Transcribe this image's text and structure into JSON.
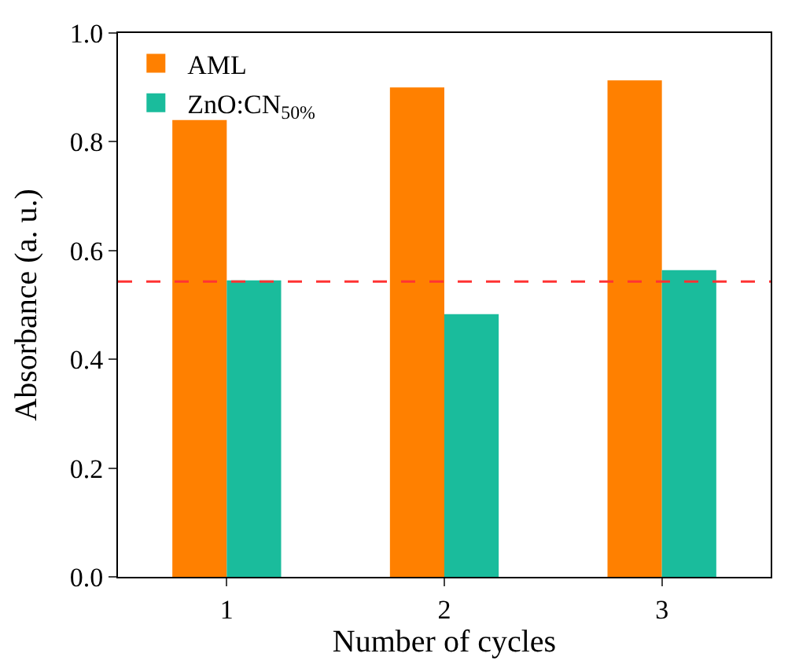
{
  "chart_data": {
    "type": "bar",
    "xlabel": "Number of cycles",
    "ylabel": "Absorbance (a. u.)",
    "categories": [
      "1",
      "2",
      "3"
    ],
    "series": [
      {
        "name": "AML",
        "color": "#ff8000",
        "values": [
          0.84,
          0.9,
          0.913
        ]
      },
      {
        "name": "ZnO:CN$_{50%}$",
        "color": "#1abc9c",
        "values": [
          0.545,
          0.483,
          0.564
        ]
      }
    ],
    "ylim": [
      0.0,
      1.0
    ],
    "yticks": [
      {
        "value": 0,
        "label": "0.0"
      },
      {
        "value": 0.2,
        "label": "0.2"
      },
      {
        "value": 0.4,
        "label": "0.4"
      },
      {
        "value": 0.6,
        "label": "0.6"
      },
      {
        "value": 0.8,
        "label": "0.8"
      },
      {
        "value": 1.0,
        "label": "1.0"
      }
    ],
    "ref_lines": [
      {
        "axis": "y",
        "value": 0.543,
        "color": "#ff3333",
        "line_style": "dashed"
      }
    ],
    "legend": "top left"
  }
}
